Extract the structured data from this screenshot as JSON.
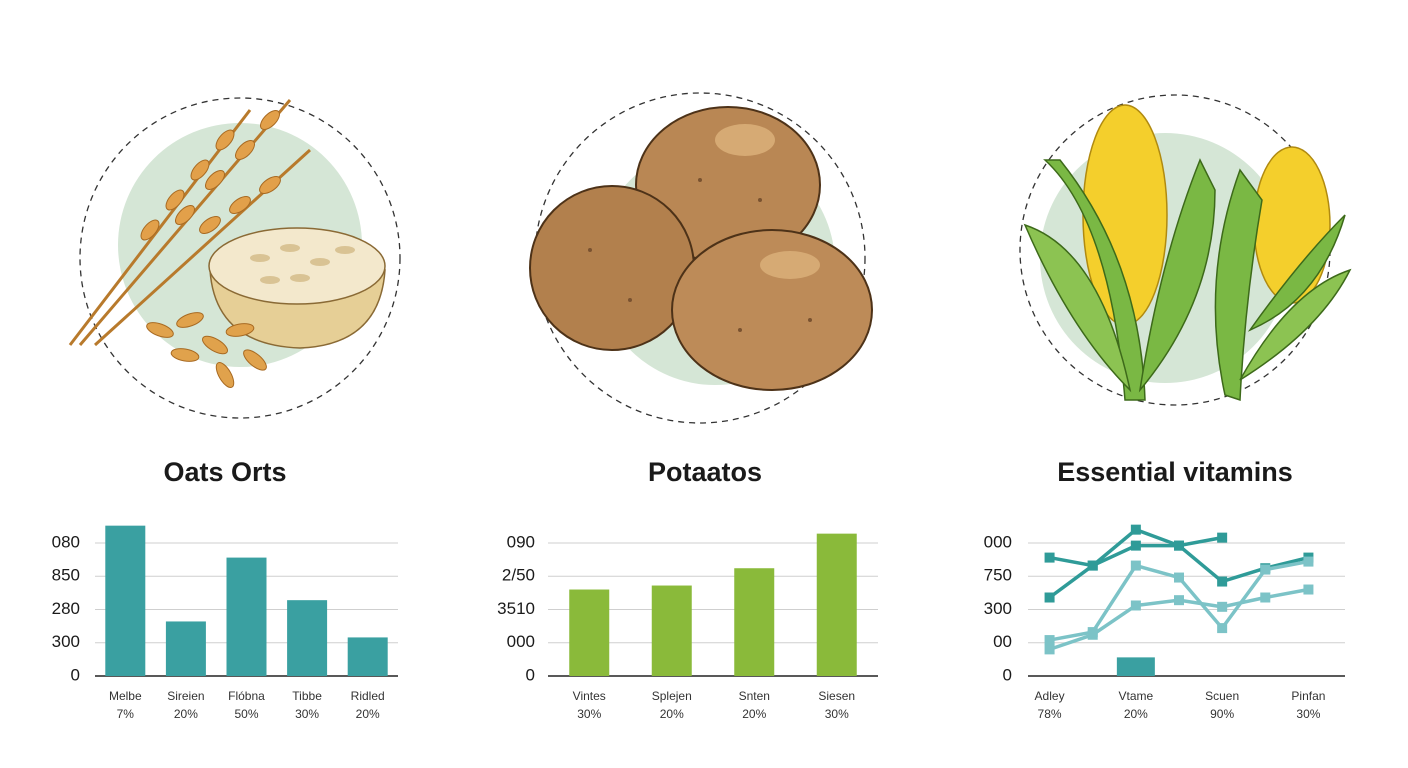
{
  "chart_data": [
    {
      "type": "bar",
      "title": "Oats Orts",
      "categories": [
        "Melbe",
        "Sireien",
        "Flóbna",
        "Tibbe",
        "Ridled"
      ],
      "shares": [
        "7%",
        "20%",
        "50%",
        "30%",
        "20%"
      ],
      "values": [
        113,
        41,
        89,
        57,
        29
      ],
      "color": "#3aa0a1",
      "ylim": [
        0,
        115
      ],
      "yticks": [
        0,
        {
          "value": 25,
          "label": "300"
        },
        {
          "value": 50,
          "label": "280"
        },
        {
          "value": 75,
          "label": "850"
        },
        {
          "value": 100,
          "label": "080"
        }
      ],
      "grid": true
    },
    {
      "type": "bar",
      "title": "Potaatos",
      "categories": [
        "Vintes",
        "Splejen",
        "Snten",
        "Siesen"
      ],
      "shares": [
        "30%",
        "20%",
        "20%",
        "30%"
      ],
      "values": [
        65,
        68,
        81,
        107
      ],
      "color": "#8aba3a",
      "ylim": [
        0,
        115
      ],
      "yticks": [
        0,
        {
          "value": 25,
          "label": "000"
        },
        {
          "value": 50,
          "label": "3510"
        },
        {
          "value": 75,
          "label": "2/50"
        },
        {
          "value": 100,
          "label": "090"
        }
      ],
      "grid": true
    },
    {
      "type": "line",
      "title": "Essential vitamins",
      "categories": [
        "Adley",
        null,
        "Vtame",
        null,
        "Scuen",
        null,
        "Pinfan"
      ],
      "shares": [
        "78%",
        null,
        "20%",
        null,
        "90%",
        null,
        "30%"
      ],
      "series": [
        {
          "type": "line",
          "color": "#2f9b98",
          "values": [
            89,
            83,
            98,
            98,
            71,
            81,
            89
          ]
        },
        {
          "type": "line",
          "color": "#2f9b98",
          "values": [
            59,
            83,
            110,
            98,
            104,
            null,
            null
          ]
        },
        {
          "type": "line",
          "color": "#7cc3c7",
          "values": [
            27,
            33,
            83,
            74,
            36,
            80,
            86
          ]
        },
        {
          "type": "line",
          "color": "#7cc3c7",
          "values": [
            20,
            31,
            53,
            57,
            52,
            59,
            65
          ]
        },
        {
          "type": "bar",
          "color": "#3aa0a1",
          "values": [
            null,
            null,
            14,
            null,
            null,
            null,
            null
          ]
        }
      ],
      "ylim": [
        0,
        115
      ],
      "yticks": [
        0,
        {
          "value": 25,
          "label": "00"
        },
        {
          "value": 50,
          "label": "300"
        },
        {
          "value": 75,
          "label": "750"
        },
        {
          "value": 100,
          "label": "000"
        }
      ],
      "grid": true
    }
  ]
}
